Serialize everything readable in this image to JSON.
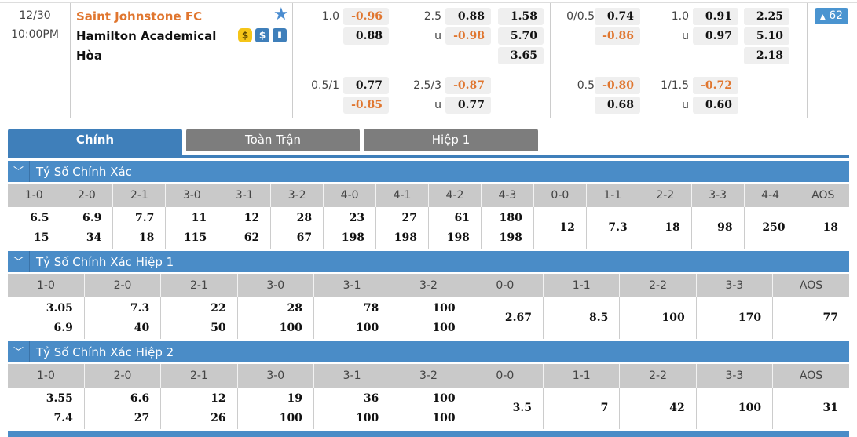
{
  "match": {
    "date": "12/30",
    "time": "10:00PM",
    "home": "Saint Johnstone FC",
    "away": "Hamilton Academical",
    "draw": "Hòa",
    "count_badge": "62",
    "badge_icon": "triangle-up-icon"
  },
  "colors": {
    "accent": "#4a8cc7",
    "negative": "#e0762f",
    "tab_inactive": "#7d7d7d"
  },
  "odds": [
    {
      "label": "1.0",
      "value": "-0.96",
      "neg": true,
      "col": "g1a",
      "row": 0
    },
    {
      "label": "",
      "value": "0.88",
      "neg": false,
      "col": "g1a",
      "row": 1
    },
    {
      "label": "2.5",
      "value": "0.88",
      "neg": false,
      "col": "g1b",
      "row": 0
    },
    {
      "label": "u",
      "value": "-0.98",
      "neg": true,
      "col": "g1b",
      "row": 1
    },
    {
      "label": "",
      "value": "1.58",
      "neg": false,
      "col": "g1c",
      "row": 0
    },
    {
      "label": "",
      "value": "5.70",
      "neg": false,
      "col": "g1c",
      "row": 1
    },
    {
      "label": "",
      "value": "3.65",
      "neg": false,
      "col": "g1c",
      "row": 2
    },
    {
      "label": "0.5/1",
      "value": "0.77",
      "neg": false,
      "col": "g1a",
      "row": 3
    },
    {
      "label": "",
      "value": "-0.85",
      "neg": true,
      "col": "g1a",
      "row": 4
    },
    {
      "label": "2.5/3",
      "value": "-0.87",
      "neg": true,
      "col": "g1b",
      "row": 3
    },
    {
      "label": "u",
      "value": "0.77",
      "neg": false,
      "col": "g1b",
      "row": 4
    },
    {
      "label": "0/0.5",
      "value": "0.74",
      "neg": false,
      "col": "g2a",
      "row": 0
    },
    {
      "label": "",
      "value": "-0.86",
      "neg": true,
      "col": "g2a",
      "row": 1
    },
    {
      "label": "1.0",
      "value": "0.91",
      "neg": false,
      "col": "g2b",
      "row": 0
    },
    {
      "label": "u",
      "value": "0.97",
      "neg": false,
      "col": "g2b",
      "row": 1
    },
    {
      "label": "",
      "value": "2.25",
      "neg": false,
      "col": "g2c",
      "row": 0
    },
    {
      "label": "",
      "value": "5.10",
      "neg": false,
      "col": "g2c",
      "row": 1
    },
    {
      "label": "",
      "value": "2.18",
      "neg": false,
      "col": "g2c",
      "row": 2
    },
    {
      "label": "0.5",
      "value": "-0.80",
      "neg": true,
      "col": "g2a",
      "row": 3
    },
    {
      "label": "",
      "value": "0.68",
      "neg": false,
      "col": "g2a",
      "row": 4
    },
    {
      "label": "1/1.5",
      "value": "-0.72",
      "neg": true,
      "col": "g2b",
      "row": 3
    },
    {
      "label": "u",
      "value": "0.60",
      "neg": false,
      "col": "g2b",
      "row": 4
    }
  ],
  "tabs": [
    {
      "label": "Chính",
      "active": true
    },
    {
      "label": "Toàn Trận",
      "active": false
    },
    {
      "label": "Hiệp 1",
      "active": false
    }
  ],
  "sections": [
    {
      "title": "Tỷ Số Chính Xác",
      "headers": [
        "1-0",
        "2-0",
        "2-1",
        "3-0",
        "3-1",
        "3-2",
        "4-0",
        "4-1",
        "4-2",
        "4-3",
        "0-0",
        "1-1",
        "2-2",
        "3-3",
        "4-4",
        "AOS"
      ],
      "values": [
        [
          "6.5",
          "15"
        ],
        [
          "6.9",
          "34"
        ],
        [
          "7.7",
          "18"
        ],
        [
          "11",
          "115"
        ],
        [
          "12",
          "62"
        ],
        [
          "28",
          "67"
        ],
        [
          "23",
          "198"
        ],
        [
          "27",
          "198"
        ],
        [
          "61",
          "198"
        ],
        [
          "180",
          "198"
        ],
        [
          "12"
        ],
        [
          "7.3"
        ],
        [
          "18"
        ],
        [
          "98"
        ],
        [
          "250"
        ],
        [
          "18"
        ]
      ]
    },
    {
      "title": "Tỷ Số Chính Xác Hiệp 1",
      "headers": [
        "1-0",
        "2-0",
        "2-1",
        "3-0",
        "3-1",
        "3-2",
        "0-0",
        "1-1",
        "2-2",
        "3-3",
        "AOS"
      ],
      "values": [
        [
          "3.05",
          "6.9"
        ],
        [
          "7.3",
          "40"
        ],
        [
          "22",
          "50"
        ],
        [
          "28",
          "100"
        ],
        [
          "78",
          "100"
        ],
        [
          "100",
          "100"
        ],
        [
          "2.67"
        ],
        [
          "8.5"
        ],
        [
          "100"
        ],
        [
          "170"
        ],
        [
          "77"
        ]
      ]
    },
    {
      "title": "Tỷ Số Chính Xác Hiệp 2",
      "headers": [
        "1-0",
        "2-0",
        "2-1",
        "3-0",
        "3-1",
        "3-2",
        "0-0",
        "1-1",
        "2-2",
        "3-3",
        "AOS"
      ],
      "values": [
        [
          "3.55",
          "7.4"
        ],
        [
          "6.6",
          "27"
        ],
        [
          "12",
          "26"
        ],
        [
          "19",
          "100"
        ],
        [
          "36",
          "100"
        ],
        [
          "100",
          "100"
        ],
        [
          "3.5"
        ],
        [
          "7"
        ],
        [
          "42"
        ],
        [
          "100"
        ],
        [
          "31"
        ]
      ]
    }
  ]
}
